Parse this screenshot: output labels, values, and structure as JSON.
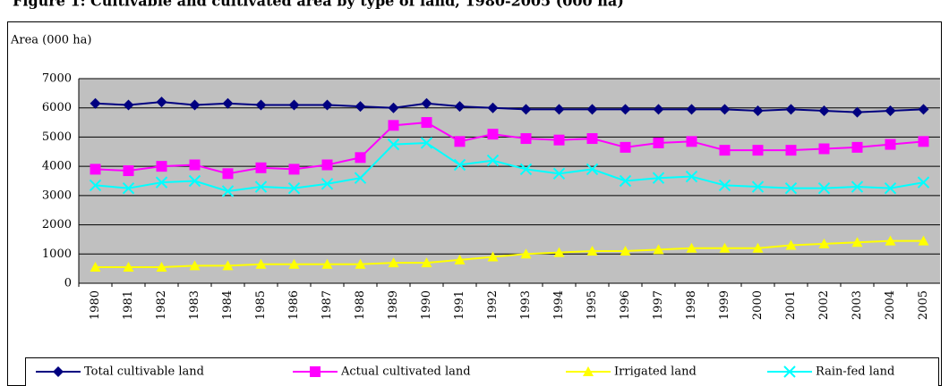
{
  "chart_data": {
    "type": "line",
    "title": "Figure 1: Cultivable and cultivated area by type of land, 1980-2005 (000 ha)",
    "y_label": "Area (000 ha)",
    "categories": [
      "1980",
      "1981",
      "1982",
      "1983",
      "1984",
      "1985",
      "1986",
      "1987",
      "1988",
      "1989",
      "1990",
      "1991",
      "1992",
      "1993",
      "1994",
      "1995",
      "1996",
      "1997",
      "1998",
      "1999",
      "2000",
      "2001",
      "2002",
      "2003",
      "2004",
      "2005"
    ],
    "series": [
      {
        "name": "Total cultivable land",
        "color": "#000080",
        "marker": "diamond",
        "values": [
          6150,
          6100,
          6200,
          6100,
          6150,
          6100,
          6100,
          6100,
          6050,
          6000,
          6150,
          6050,
          6000,
          5950,
          5950,
          5950,
          5950,
          5950,
          5950,
          5950,
          5900,
          5950,
          5900,
          5850,
          5900,
          5950
        ]
      },
      {
        "name": "Actual cultivated land",
        "color": "#ff00ff",
        "marker": "square",
        "values": [
          3900,
          3850,
          4000,
          4050,
          3750,
          3950,
          3900,
          4050,
          4300,
          5400,
          5500,
          4850,
          5100,
          4950,
          4900,
          4950,
          4650,
          4800,
          4850,
          4550,
          4550,
          4550,
          4600,
          4650,
          4750,
          4850
        ]
      },
      {
        "name": "Irrigated land",
        "color": "#ffff00",
        "marker": "triangle",
        "values": [
          550,
          550,
          550,
          600,
          600,
          650,
          650,
          650,
          650,
          700,
          700,
          800,
          900,
          1000,
          1050,
          1100,
          1100,
          1150,
          1200,
          1200,
          1200,
          1300,
          1350,
          1400,
          1450,
          1450
        ]
      },
      {
        "name": "Rain-fed land",
        "color": "#00ffff",
        "marker": "x",
        "values": [
          3350,
          3250,
          3450,
          3500,
          3150,
          3300,
          3250,
          3400,
          3600,
          4750,
          4800,
          4050,
          4200,
          3900,
          3750,
          3900,
          3500,
          3600,
          3650,
          3350,
          3300,
          3250,
          3250,
          3300,
          3250,
          3450
        ]
      }
    ],
    "ylim": [
      0,
      7000
    ],
    "yticks": [
      0,
      1000,
      2000,
      3000,
      4000,
      5000,
      6000,
      7000
    ],
    "grid": true,
    "plot_background": "#c0c0c0",
    "legend": "bottom"
  }
}
